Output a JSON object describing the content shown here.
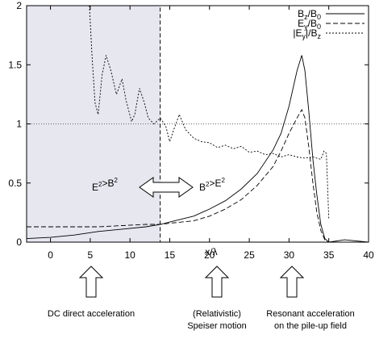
{
  "chart_data": {
    "type": "line",
    "xlabel": "x/λ",
    "ylabel": "",
    "xlim": [
      -3,
      40
    ],
    "ylim": [
      0,
      2
    ],
    "x_ticks": [
      0,
      5,
      10,
      15,
      20,
      25,
      30,
      35,
      40
    ],
    "y_ticks": [
      0,
      0.5,
      1,
      1.5,
      2
    ],
    "x_tick_labels": [
      "0",
      "5",
      "10",
      "15",
      "20",
      "25",
      "30",
      "35",
      "40"
    ],
    "y_tick_labels": [
      "0",
      "0.5",
      "1",
      "1.5",
      "2"
    ],
    "legend_position": "top-right",
    "shaded_region": {
      "x": [
        -3,
        13.8
      ],
      "y": [
        0,
        2
      ],
      "color": "#e6e7ef"
    },
    "reference_line": {
      "y": 1,
      "style": "dotted"
    },
    "series": [
      {
        "name": "B_z/B_0",
        "label_main": "B",
        "label_sub1": "z",
        "label_mid": "/B",
        "label_sub2": "0",
        "style": "solid",
        "points": [
          [
            -3,
            0.03
          ],
          [
            0,
            0.04
          ],
          [
            3,
            0.06
          ],
          [
            6,
            0.09
          ],
          [
            9,
            0.11
          ],
          [
            12,
            0.13
          ],
          [
            13.8,
            0.15
          ],
          [
            15,
            0.17
          ],
          [
            18,
            0.22
          ],
          [
            20,
            0.28
          ],
          [
            22,
            0.35
          ],
          [
            24,
            0.45
          ],
          [
            26,
            0.58
          ],
          [
            28,
            0.78
          ],
          [
            29,
            0.92
          ],
          [
            30,
            1.15
          ],
          [
            31,
            1.45
          ],
          [
            31.6,
            1.58
          ],
          [
            32,
            1.45
          ],
          [
            32.5,
            1.1
          ],
          [
            33,
            0.7
          ],
          [
            33.5,
            0.4
          ],
          [
            34,
            0.15
          ],
          [
            34.5,
            0.03
          ],
          [
            35,
            0.0
          ],
          [
            37,
            0.02
          ],
          [
            40,
            0.0
          ]
        ]
      },
      {
        "name": "E_y/B_0",
        "label_main": "E",
        "label_sub1": "y",
        "label_mid": "/B",
        "label_sub2": "0",
        "style": "dashed",
        "points": [
          [
            -3,
            0.13
          ],
          [
            0,
            0.13
          ],
          [
            3,
            0.13
          ],
          [
            6,
            0.13
          ],
          [
            9,
            0.14
          ],
          [
            12,
            0.15
          ],
          [
            13.8,
            0.15
          ],
          [
            15,
            0.16
          ],
          [
            18,
            0.18
          ],
          [
            20,
            0.22
          ],
          [
            22,
            0.28
          ],
          [
            24,
            0.36
          ],
          [
            26,
            0.48
          ],
          [
            28,
            0.64
          ],
          [
            29,
            0.77
          ],
          [
            30,
            0.92
          ],
          [
            31,
            1.05
          ],
          [
            31.6,
            1.12
          ],
          [
            32,
            1.05
          ],
          [
            32.5,
            0.8
          ],
          [
            33,
            0.5
          ],
          [
            33.5,
            0.25
          ],
          [
            34,
            0.1
          ],
          [
            34.5,
            0.02
          ],
          [
            35,
            0.0
          ],
          [
            40,
            0.0
          ]
        ]
      },
      {
        "name": "|E_y|/B_z",
        "label_main": "|E",
        "label_sub1": "y",
        "label_mid": "|/B",
        "label_sub2": "z",
        "style": "dotted",
        "points": [
          [
            4.9,
            2.0
          ],
          [
            5.2,
            1.6
          ],
          [
            5.6,
            1.18
          ],
          [
            6,
            1.08
          ],
          [
            6.5,
            1.42
          ],
          [
            7,
            1.58
          ],
          [
            7.6,
            1.45
          ],
          [
            8.3,
            1.25
          ],
          [
            9,
            1.38
          ],
          [
            9.5,
            1.2
          ],
          [
            10.2,
            1.02
          ],
          [
            10.6,
            1.08
          ],
          [
            11.2,
            1.3
          ],
          [
            11.8,
            1.18
          ],
          [
            12.3,
            1.05
          ],
          [
            13,
            1.0
          ],
          [
            13.8,
            1.05
          ],
          [
            14.5,
            0.98
          ],
          [
            15,
            0.85
          ],
          [
            15.5,
            0.95
          ],
          [
            16.2,
            1.08
          ],
          [
            17,
            0.95
          ],
          [
            18,
            0.88
          ],
          [
            19,
            0.85
          ],
          [
            20,
            0.84
          ],
          [
            21,
            0.8
          ],
          [
            22,
            0.82
          ],
          [
            23,
            0.79
          ],
          [
            24,
            0.81
          ],
          [
            25,
            0.76
          ],
          [
            26,
            0.77
          ],
          [
            27,
            0.74
          ],
          [
            28,
            0.75
          ],
          [
            29,
            0.72
          ],
          [
            30,
            0.74
          ],
          [
            31,
            0.72
          ],
          [
            32,
            0.71
          ],
          [
            33,
            0.72
          ],
          [
            34,
            0.7
          ],
          [
            34.4,
            0.77
          ],
          [
            34.7,
            0.75
          ],
          [
            35,
            0.2
          ]
        ]
      }
    ],
    "annotations": {
      "left_region": "E²>B²",
      "right_region": "B²>E²",
      "caption_left": "DC direct acceleration",
      "caption_middle_line1": "(Relativistic)",
      "caption_middle_line2": "Speiser motion",
      "caption_right_line1": "Resonant acceleration",
      "caption_right_line2": "on the pile-up field"
    }
  }
}
